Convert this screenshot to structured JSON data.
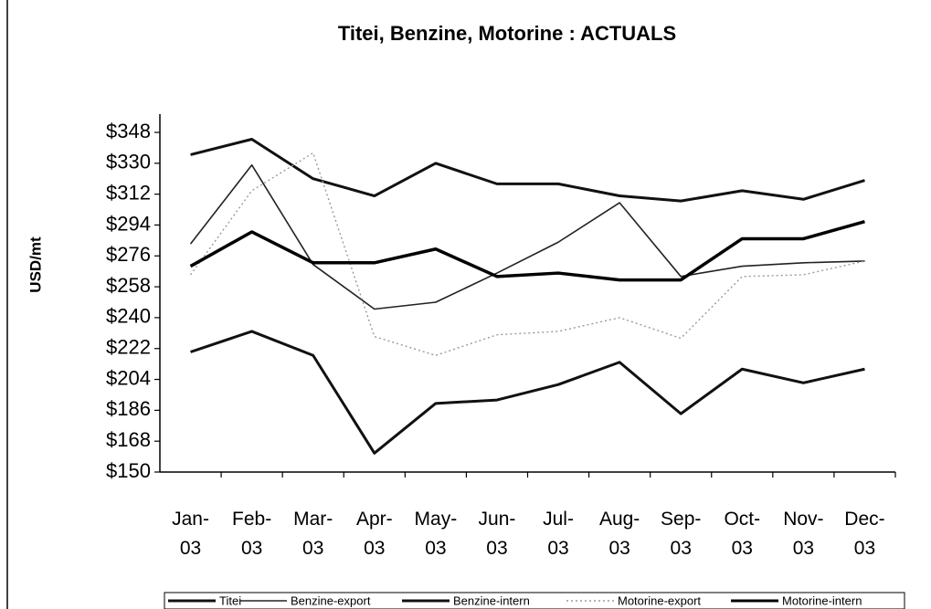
{
  "chart_data": {
    "type": "line",
    "title": "Titei, Benzine, Motorine : ACTUALS",
    "y_label": "USD/mt",
    "categories": [
      "Jan-03",
      "Feb-03",
      "Mar-03",
      "Apr-03",
      "May-03",
      "Jun-03",
      "Jul-03",
      "Aug-03",
      "Sep-03",
      "Oct-03",
      "Nov-03",
      "Dec-03"
    ],
    "series": [
      {
        "name": "Titei",
        "color": "#111111",
        "line_width": 3,
        "dash": "solid",
        "values": [
          220,
          232,
          218,
          161,
          190,
          192,
          201,
          214,
          184,
          210,
          202,
          210
        ]
      },
      {
        "name": "Benzine-export",
        "color": "#222222",
        "line_width": 1.6,
        "dash": "solid",
        "values": [
          283,
          329,
          271,
          245,
          249,
          266,
          284,
          307,
          264,
          270,
          272,
          273
        ]
      },
      {
        "name": "Benzine-intern",
        "color": "#111111",
        "line_width": 3,
        "dash": "solid",
        "values": [
          335,
          344,
          321,
          311,
          330,
          318,
          318,
          311,
          308,
          314,
          309,
          320
        ]
      },
      {
        "name": "Motorine-export",
        "color": "#9a9a9a",
        "line_width": 1.4,
        "dash": "dotted",
        "values": [
          265,
          314,
          336,
          229,
          218,
          230,
          232,
          240,
          228,
          264,
          265,
          273
        ]
      },
      {
        "name": "Motorine-intern",
        "color": "#000000",
        "line_width": 3.5,
        "dash": "solid",
        "values": [
          270,
          290,
          272,
          272,
          280,
          264,
          266,
          262,
          262,
          286,
          286,
          296
        ]
      }
    ],
    "ylim": [
      150,
      348
    ],
    "yticks": [
      {
        "value": 150,
        "label": "$150"
      },
      {
        "value": 168,
        "label": "$168"
      },
      {
        "value": 186,
        "label": "$186"
      },
      {
        "value": 204,
        "label": "$204"
      },
      {
        "value": 222,
        "label": "$222"
      },
      {
        "value": 240,
        "label": "$240"
      },
      {
        "value": 258,
        "label": "$258"
      },
      {
        "value": 276,
        "label": "$276"
      },
      {
        "value": 294,
        "label": "$294"
      },
      {
        "value": 312,
        "label": "$312"
      },
      {
        "value": 330,
        "label": "$330"
      },
      {
        "value": 348,
        "label": "$348"
      }
    ],
    "legend": "bottom"
  }
}
